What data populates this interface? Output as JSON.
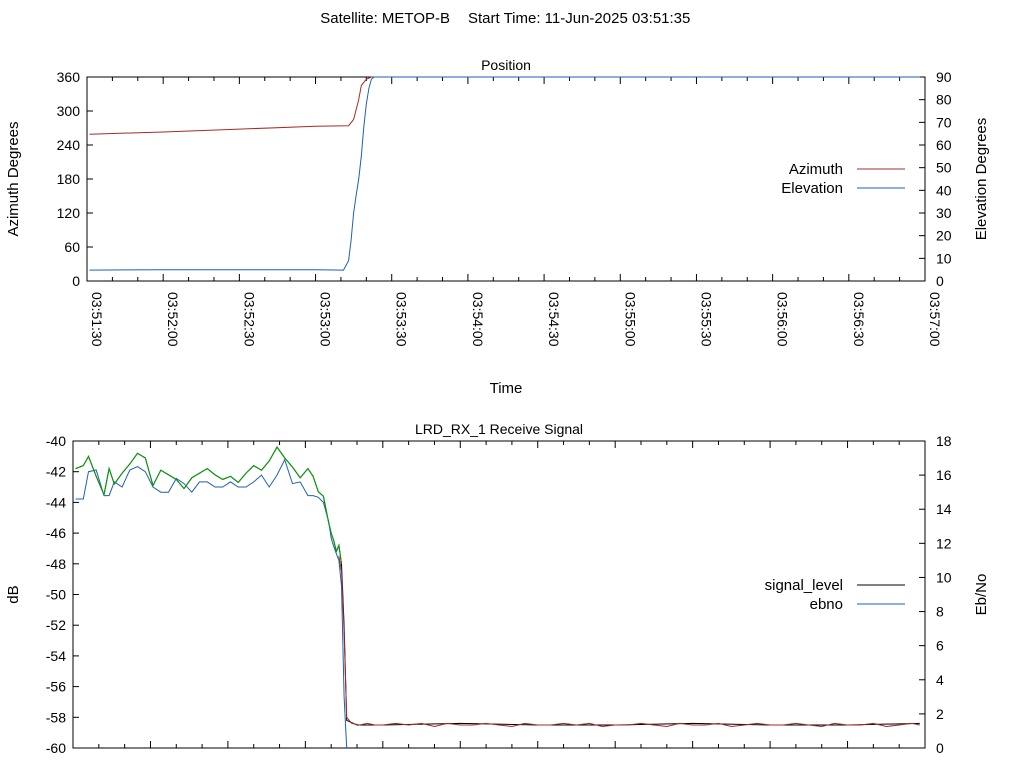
{
  "header": {
    "satellite": "Satellite: METOP-B",
    "start_time": "Start Time: 11-Jun-2025 03:51:35"
  },
  "chart_data": [
    {
      "type": "line",
      "title": "Position",
      "xlabel": "Time",
      "ylabel_left": "Azimuth Degrees",
      "ylabel_right": "Elevation Degrees",
      "x_range": [
        "03:51:30",
        "03:57:00"
      ],
      "x_tick_labels": [
        "03:51:30",
        "03:52:00",
        "03:52:30",
        "03:53:00",
        "03:53:30",
        "03:54:00",
        "03:54:30",
        "03:55:00",
        "03:55:30",
        "03:56:00",
        "03:56:30",
        "03:57:00"
      ],
      "ylim_left": [
        0,
        360
      ],
      "yticks_left": [
        0,
        60,
        120,
        180,
        240,
        300,
        360
      ],
      "ylim_right": [
        0,
        90
      ],
      "yticks_right": [
        0,
        10,
        20,
        30,
        40,
        50,
        60,
        70,
        80,
        90
      ],
      "grid": false,
      "legend_position": "right",
      "series": [
        {
          "name": "Azimuth",
          "axis": "left",
          "color": "#a52a2a",
          "x": [
            "03:51:31",
            "03:52:00",
            "03:52:30",
            "03:53:00",
            "03:53:13",
            "03:53:15",
            "03:53:17",
            "03:53:18",
            "03:53:20",
            "03:53:22",
            "03:56:58"
          ],
          "y": [
            259,
            263,
            268,
            273,
            274,
            285,
            320,
            345,
            356,
            360,
            360
          ]
        },
        {
          "name": "Elevation",
          "axis": "right",
          "color": "#1f5fb4",
          "x": [
            "03:51:31",
            "03:52:00",
            "03:52:30",
            "03:53:00",
            "03:53:11",
            "03:53:13",
            "03:53:14",
            "03:53:15",
            "03:53:16",
            "03:53:17",
            "03:53:18",
            "03:53:19",
            "03:53:20",
            "03:53:21",
            "03:53:22",
            "03:53:23",
            "03:56:58"
          ],
          "y": [
            4.8,
            5,
            5,
            5,
            4.8,
            9,
            18,
            30,
            38,
            45,
            55,
            68,
            78,
            85,
            89,
            90,
            90
          ]
        }
      ]
    },
    {
      "type": "line",
      "title": "LRD_RX_1 Receive Signal",
      "ylabel_left": "dB",
      "ylabel_right": "Eb/No",
      "x_range": [
        "03:51:30",
        "03:57:00"
      ],
      "ylim_left": [
        -60,
        -40
      ],
      "yticks_left": [
        -60,
        -58,
        -56,
        -54,
        -52,
        -50,
        -48,
        -46,
        -44,
        -42,
        -40
      ],
      "ylim_right": [
        0,
        18
      ],
      "yticks_right": [
        0,
        2,
        4,
        6,
        8,
        10,
        12,
        14,
        16,
        18
      ],
      "grid": false,
      "legend_position": "right",
      "series": [
        {
          "name": "signal_level",
          "axis": "left",
          "color": "#000000",
          "x": [
            "03:51:31",
            "03:51:34",
            "03:51:36",
            "03:51:39",
            "03:51:42",
            "03:51:44",
            "03:51:46",
            "03:51:49",
            "03:51:52",
            "03:51:55",
            "03:51:58",
            "03:52:01",
            "03:52:04",
            "03:52:07",
            "03:52:10",
            "03:52:13",
            "03:52:16",
            "03:52:19",
            "03:52:22",
            "03:52:25",
            "03:52:28",
            "03:52:31",
            "03:52:34",
            "03:52:37",
            "03:52:40",
            "03:52:43",
            "03:52:46",
            "03:52:49",
            "03:52:52",
            "03:52:55",
            "03:52:58",
            "03:53:01",
            "03:53:03",
            "03:53:05",
            "03:53:07",
            "03:53:09",
            "03:53:10",
            "03:53:11",
            "03:53:12",
            "03:53:13",
            "03:53:14",
            "03:53:15",
            "03:53:16",
            "03:53:20",
            "03:53:30",
            "03:54:00",
            "03:54:30",
            "03:55:00",
            "03:55:30",
            "03:56:00",
            "03:56:30",
            "03:56:58"
          ],
          "y": [
            -41.8,
            -41.6,
            -41.0,
            -42.3,
            -43.5,
            -41.8,
            -42.8,
            -42.1,
            -41.5,
            -40.8,
            -41.1,
            -42.9,
            -41.9,
            -42.2,
            -42.5,
            -43.1,
            -42.4,
            -42.1,
            -41.8,
            -42.2,
            -42.5,
            -42.3,
            -42.7,
            -42.1,
            -41.6,
            -41.9,
            -41.3,
            -40.4,
            -41.1,
            -41.7,
            -42.4,
            -41.8,
            -42.3,
            -43.3,
            -43.6,
            -45.3,
            -46.0,
            -46.5,
            -47.2,
            -46.8,
            -48.0,
            -52.0,
            -58.2,
            -58.5,
            -58.5,
            -58.4,
            -58.5,
            -58.5,
            -58.4,
            -58.5,
            -58.5,
            -58.4
          ]
        },
        {
          "name": "ebno",
          "axis": "right",
          "color": "#1f5fb4",
          "x": [
            "03:51:31",
            "03:51:34",
            "03:51:36",
            "03:51:39",
            "03:51:42",
            "03:51:44",
            "03:51:46",
            "03:51:49",
            "03:51:52",
            "03:51:55",
            "03:51:58",
            "03:52:01",
            "03:52:04",
            "03:52:07",
            "03:52:10",
            "03:52:13",
            "03:52:16",
            "03:52:19",
            "03:52:22",
            "03:52:25",
            "03:52:28",
            "03:52:31",
            "03:52:34",
            "03:52:37",
            "03:52:40",
            "03:52:43",
            "03:52:46",
            "03:52:49",
            "03:52:52",
            "03:52:55",
            "03:52:58",
            "03:53:01",
            "03:53:03",
            "03:53:05",
            "03:53:07",
            "03:53:09",
            "03:53:10",
            "03:53:11",
            "03:53:12",
            "03:53:13",
            "03:53:14",
            "03:53:15",
            "03:53:16"
          ],
          "y": [
            14.6,
            14.6,
            16.2,
            16.3,
            14.8,
            14.8,
            15.6,
            15.3,
            16.3,
            16.5,
            16.2,
            15.3,
            15.0,
            15.0,
            15.8,
            15.5,
            15.0,
            15.6,
            15.6,
            15.3,
            15.3,
            15.6,
            15.3,
            15.3,
            15.6,
            16.0,
            15.3,
            16.0,
            16.9,
            15.5,
            15.6,
            14.8,
            14.8,
            14.7,
            14.4,
            13.3,
            12.3,
            11.8,
            11.4,
            11.0,
            9.5,
            3.0,
            0.0
          ]
        },
        {
          "name": "",
          "axis": "left",
          "color": "#00a000",
          "x": [
            "03:51:31",
            "03:51:34",
            "03:51:36",
            "03:51:39",
            "03:51:42",
            "03:51:44",
            "03:51:46",
            "03:51:49",
            "03:51:52",
            "03:51:55",
            "03:51:58",
            "03:52:01",
            "03:52:04",
            "03:52:07",
            "03:52:10",
            "03:52:13",
            "03:52:16",
            "03:52:19",
            "03:52:22",
            "03:52:25",
            "03:52:28",
            "03:52:31",
            "03:52:34",
            "03:52:37",
            "03:52:40",
            "03:52:43",
            "03:52:46",
            "03:52:49",
            "03:52:52",
            "03:52:55",
            "03:52:58",
            "03:53:01",
            "03:53:03",
            "03:53:05",
            "03:53:07",
            "03:53:09",
            "03:53:10",
            "03:53:11",
            "03:53:12",
            "03:53:13",
            "03:53:14"
          ],
          "y": [
            -41.8,
            -41.6,
            -41.0,
            -42.3,
            -43.5,
            -41.8,
            -42.8,
            -42.1,
            -41.5,
            -40.8,
            -41.1,
            -42.9,
            -41.9,
            -42.2,
            -42.5,
            -43.1,
            -42.4,
            -42.1,
            -41.8,
            -42.2,
            -42.5,
            -42.3,
            -42.7,
            -42.1,
            -41.6,
            -41.9,
            -41.3,
            -40.4,
            -41.1,
            -41.7,
            -42.4,
            -41.8,
            -42.3,
            -43.3,
            -43.6,
            -45.3,
            -46.0,
            -46.5,
            -47.2,
            -46.8,
            -48.0
          ]
        },
        {
          "name": "",
          "axis": "left",
          "color": "#a52a2a",
          "x": [
            "03:53:13",
            "03:53:14",
            "03:53:15",
            "03:53:16",
            "03:53:18",
            "03:53:21",
            "03:53:24",
            "03:53:27",
            "03:53:30",
            "03:53:35",
            "03:53:40",
            "03:53:45",
            "03:53:50",
            "03:53:55",
            "03:54:00",
            "03:54:05",
            "03:54:10",
            "03:54:15",
            "03:54:20",
            "03:54:25",
            "03:54:30",
            "03:54:35",
            "03:54:40",
            "03:54:45",
            "03:54:50",
            "03:54:55",
            "03:55:00",
            "03:55:05",
            "03:55:10",
            "03:55:15",
            "03:55:20",
            "03:55:25",
            "03:55:30",
            "03:55:35",
            "03:55:40",
            "03:55:45",
            "03:55:50",
            "03:55:55",
            "03:56:00",
            "03:56:05",
            "03:56:10",
            "03:56:15",
            "03:56:20",
            "03:56:25",
            "03:56:30",
            "03:56:35",
            "03:56:40",
            "03:56:45",
            "03:56:50",
            "03:56:55",
            "03:56:58"
          ],
          "y": [
            -47.5,
            -48.5,
            -52.5,
            -58.0,
            -58.4,
            -58.5,
            -58.4,
            -58.5,
            -58.5,
            -58.4,
            -58.5,
            -58.4,
            -58.6,
            -58.4,
            -58.5,
            -58.5,
            -58.4,
            -58.5,
            -58.6,
            -58.4,
            -58.5,
            -58.5,
            -58.4,
            -58.5,
            -58.4,
            -58.6,
            -58.5,
            -58.5,
            -58.4,
            -58.5,
            -58.6,
            -58.4,
            -58.5,
            -58.5,
            -58.4,
            -58.6,
            -58.5,
            -58.4,
            -58.5,
            -58.5,
            -58.4,
            -58.5,
            -58.6,
            -58.4,
            -58.5,
            -58.5,
            -58.4,
            -58.6,
            -58.5,
            -58.4,
            -58.5
          ]
        }
      ]
    }
  ]
}
